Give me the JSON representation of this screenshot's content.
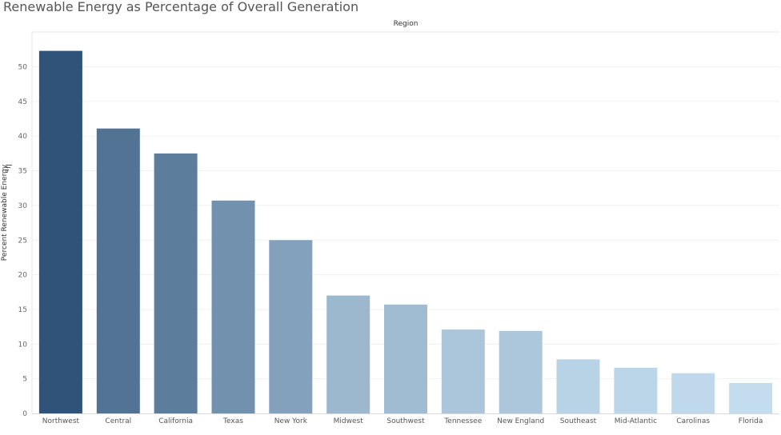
{
  "chart_data": {
    "type": "bar",
    "title": "Renewable Energy as Percentage of Overall Generation",
    "header": "Region",
    "xlabel": "",
    "ylabel": "Percent Renewable Energy",
    "categories": [
      "Northwest",
      "Central",
      "California",
      "Texas",
      "New York",
      "Midwest",
      "Southwest",
      "Tennessee",
      "New England",
      "Southeast",
      "Mid-Atlantic",
      "Carolinas",
      "Florida"
    ],
    "values": [
      52.3,
      41.1,
      37.5,
      30.7,
      25.0,
      17.0,
      15.7,
      12.1,
      11.9,
      7.8,
      6.6,
      5.8,
      4.4
    ],
    "yticks": [
      0,
      5,
      10,
      15,
      20,
      25,
      30,
      35,
      40,
      45,
      50
    ],
    "ylim": [
      0,
      55
    ],
    "grid": true,
    "color_scale": [
      "#c3dcee",
      "#2f5379"
    ],
    "icons": {
      "sort": "sort-descending-icon"
    }
  }
}
